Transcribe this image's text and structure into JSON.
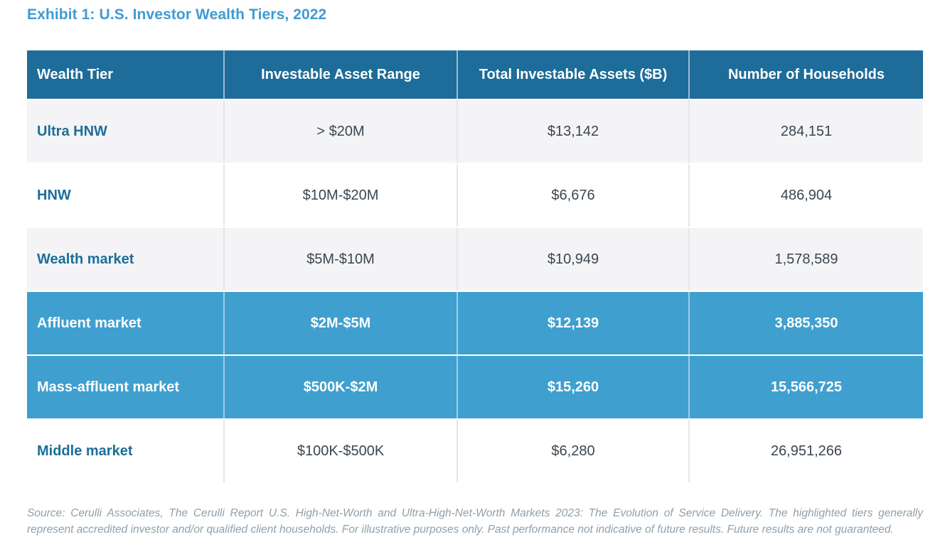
{
  "title": "Exhibit 1: U.S. Investor Wealth Tiers, 2022",
  "table": {
    "columns": [
      "Wealth Tier",
      "Investable Asset Range",
      "Total Investable Assets ($B)",
      "Number of Households"
    ],
    "rows": [
      {
        "tier": "Ultra HNW",
        "range": "> $20M",
        "assets": "$13,142",
        "households": "284,151",
        "highlighted": false
      },
      {
        "tier": "HNW",
        "range": "$10M-$20M",
        "assets": "$6,676",
        "households": "486,904",
        "highlighted": false
      },
      {
        "tier": "Wealth market",
        "range": "$5M-$10M",
        "assets": "$10,949",
        "households": "1,578,589",
        "highlighted": false
      },
      {
        "tier": "Affluent market",
        "range": "$2M-$5M",
        "assets": "$12,139",
        "households": "3,885,350",
        "highlighted": true
      },
      {
        "tier": "Mass-affluent market",
        "range": "$500K-$2M",
        "assets": "$15,260",
        "households": "15,566,725",
        "highlighted": true
      },
      {
        "tier": "Middle market",
        "range": "$100K-$500K",
        "assets": "$6,280",
        "households": "26,951,266",
        "highlighted": false
      }
    ]
  },
  "footnote": {
    "text": "Source: Cerulli Associates, The Cerulli Report U.S. High-Net-Worth and Ultra-High-Net-Worth Markets 2023: The Evolution of Service Delivery. The highlighted tiers generally represent accredited investor and/or qualified client households. For illustrative purposes only. Past performance not indicative of future results. Future results are not guaranteed."
  },
  "colors": {
    "title": "#3E9BD3",
    "header_bg": "#1D6C99",
    "highlight_bg": "#3F9FCE",
    "tier_label": "#1C6E99",
    "body_text": "#3A4650",
    "alt_row_bg": "#F4F4F6",
    "footnote_text": "#8FA0AB"
  }
}
